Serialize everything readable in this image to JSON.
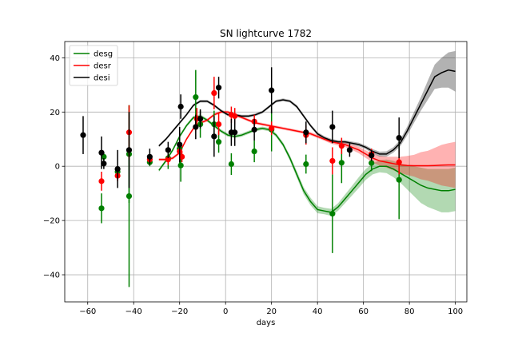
{
  "chart_data": {
    "type": "line",
    "title": "SN lightcurve 1782",
    "xlabel": "days",
    "ylabel": "",
    "xlim": [
      -70,
      105
    ],
    "ylim": [
      -50,
      46
    ],
    "xticks": [
      -60,
      -40,
      -20,
      0,
      20,
      40,
      60,
      80,
      100
    ],
    "yticks": [
      -40,
      -20,
      0,
      20,
      40
    ],
    "grid": true,
    "legend_position": "top-left",
    "series": [
      {
        "name": "desg",
        "color": "#008000",
        "fit_x": [
          -29,
          -26,
          -23,
          -20,
          -17,
          -14,
          -11,
          -8,
          -5,
          -2,
          1,
          4,
          7,
          10,
          13,
          16,
          19,
          22,
          25,
          28,
          31,
          34,
          37,
          40,
          43,
          46,
          49,
          52,
          55,
          58,
          61,
          64,
          67,
          70,
          73,
          76,
          79,
          82,
          85,
          88,
          91,
          94,
          97,
          100
        ],
        "fit_y": [
          -1.5,
          2,
          6,
          11,
          15,
          18,
          18.5,
          17,
          15,
          13,
          11.5,
          11,
          11.5,
          12.5,
          13.5,
          14,
          13.5,
          11.5,
          8,
          3,
          -3,
          -9,
          -13,
          -16,
          -16.5,
          -17,
          -15,
          -12,
          -9,
          -6,
          -3,
          -1,
          0,
          0,
          -1,
          -2.5,
          -4,
          -5.5,
          -7,
          -8,
          -8.5,
          -9,
          -9,
          -8.5
        ],
        "band_half_width": [
          0.6,
          0.6,
          0.6,
          0.6,
          0.6,
          0.6,
          0.6,
          0.6,
          0.6,
          0.6,
          0.6,
          0.6,
          0.6,
          0.6,
          0.6,
          0.6,
          0.6,
          0.7,
          0.8,
          1.0,
          1.2,
          1.3,
          1.4,
          1.3,
          1.2,
          1.3,
          1.4,
          1.6,
          1.8,
          2.0,
          2.0,
          2.0,
          2.2,
          2.5,
          3.0,
          3.5,
          4.5,
          5.5,
          6.5,
          7.0,
          7.5,
          8.0,
          8.0,
          8.0
        ],
        "points": [
          {
            "x": -54,
            "y": -15.5,
            "err": 5.5
          },
          {
            "x": -53,
            "y": 3.5,
            "err": 1.5
          },
          {
            "x": -47,
            "y": -2,
            "err": 1.5
          },
          {
            "x": -42,
            "y": 4.5,
            "err": 18
          },
          {
            "x": -42,
            "y": -11,
            "err": 33.5
          },
          {
            "x": -33,
            "y": 1.5,
            "err": 1.5
          },
          {
            "x": -25,
            "y": 3,
            "err": 4
          },
          {
            "x": -20,
            "y": 6.5,
            "err": 6.5
          },
          {
            "x": -19.5,
            "y": 0.3,
            "err": 6
          },
          {
            "x": -13,
            "y": 25.5,
            "err": 10
          },
          {
            "x": -11,
            "y": 15.5,
            "err": 5
          },
          {
            "x": -5,
            "y": 15.5,
            "err": 5
          },
          {
            "x": -3,
            "y": 9,
            "err": 4
          },
          {
            "x": 2.5,
            "y": 0.8,
            "err": 4
          },
          {
            "x": 12.5,
            "y": 5.5,
            "err": 4
          },
          {
            "x": 20,
            "y": 13.5,
            "err": 8
          },
          {
            "x": 35,
            "y": 0.8,
            "err": 3.5
          },
          {
            "x": 46.5,
            "y": -17.5,
            "err": 14.5
          },
          {
            "x": 50.5,
            "y": 1.3,
            "err": 7.5
          },
          {
            "x": 63.5,
            "y": 1.2,
            "err": 3
          },
          {
            "x": 75.5,
            "y": -5,
            "err": 14.5
          }
        ]
      },
      {
        "name": "desr",
        "color": "#ff0000",
        "fit_x": [
          -29,
          -26,
          -23,
          -20,
          -17,
          -14,
          -11,
          -8,
          -5,
          -2,
          1,
          4,
          7,
          10,
          13,
          16,
          19,
          22,
          25,
          28,
          31,
          34,
          37,
          40,
          43,
          46,
          49,
          52,
          55,
          58,
          61,
          64,
          67,
          70,
          73,
          76,
          79,
          82,
          85,
          88,
          91,
          94,
          97,
          100
        ],
        "fit_y": [
          2.5,
          2.5,
          3,
          5,
          10,
          14,
          16,
          17,
          19,
          20,
          20,
          19,
          18,
          17,
          16,
          15.5,
          15,
          14.5,
          14,
          13.5,
          13,
          12.5,
          12,
          11,
          10,
          9,
          8.5,
          8,
          7,
          6,
          4.5,
          3,
          2,
          1.5,
          1,
          0.5,
          0.3,
          0.2,
          0.2,
          0.2,
          0.3,
          0.4,
          0.5,
          0.5
        ],
        "band_half_width": [
          0.5,
          0.5,
          0.5,
          0.5,
          0.5,
          0.5,
          0.5,
          0.5,
          0.5,
          0.5,
          0.5,
          0.5,
          0.5,
          0.5,
          0.5,
          0.5,
          0.5,
          0.5,
          0.5,
          0.5,
          0.5,
          0.5,
          0.6,
          0.6,
          0.6,
          0.7,
          0.8,
          0.9,
          1.0,
          1.2,
          1.4,
          1.6,
          1.8,
          2.0,
          2.5,
          3.0,
          3.5,
          4.0,
          5.0,
          5.5,
          6.5,
          7.5,
          8.0,
          8.5
        ],
        "points": [
          {
            "x": -54,
            "y": -5.5,
            "err": 3.5
          },
          {
            "x": -47,
            "y": -3.5,
            "err": 2
          },
          {
            "x": -42,
            "y": 12.5,
            "err": 10
          },
          {
            "x": -33,
            "y": 2.5,
            "err": 1.5
          },
          {
            "x": -25,
            "y": 2.5,
            "err": 2
          },
          {
            "x": -20,
            "y": 5.5,
            "err": 3
          },
          {
            "x": -19,
            "y": 3.5,
            "err": 2
          },
          {
            "x": -12.5,
            "y": 17.5,
            "err": 4
          },
          {
            "x": -5,
            "y": 27,
            "err": 6
          },
          {
            "x": -3,
            "y": 15.5,
            "err": 4
          },
          {
            "x": 2.5,
            "y": 19,
            "err": 3
          },
          {
            "x": 4,
            "y": 18.5,
            "err": 3
          },
          {
            "x": 12.5,
            "y": 16.5,
            "err": 2.5
          },
          {
            "x": 20,
            "y": 14,
            "err": 2.5
          },
          {
            "x": 35,
            "y": 11.5,
            "err": 3.5
          },
          {
            "x": 46.5,
            "y": 2,
            "err": 5
          },
          {
            "x": 50.5,
            "y": 7.5,
            "err": 3
          },
          {
            "x": 63.5,
            "y": 4.5,
            "err": 2
          },
          {
            "x": 75.5,
            "y": 1.5,
            "err": 4.5
          }
        ]
      },
      {
        "name": "desi",
        "color": "#000000",
        "fit_x": [
          -29,
          -26,
          -23,
          -20,
          -17,
          -14,
          -11,
          -8,
          -5,
          -2,
          1,
          4,
          7,
          10,
          13,
          16,
          19,
          22,
          25,
          28,
          31,
          34,
          37,
          40,
          43,
          46,
          49,
          52,
          55,
          58,
          61,
          64,
          67,
          70,
          73,
          76,
          79,
          82,
          85,
          88,
          91,
          94,
          97,
          100
        ],
        "fit_y": [
          7.5,
          10,
          13,
          16,
          19,
          22.5,
          24,
          24,
          22.5,
          20.5,
          19,
          19,
          18.5,
          18.5,
          19,
          20,
          22,
          24,
          24.5,
          24,
          22,
          18.5,
          15,
          12,
          10.5,
          9.5,
          9,
          9,
          8.5,
          8,
          7,
          5.5,
          4.5,
          4.5,
          6,
          8.5,
          13,
          18,
          23,
          28,
          33,
          34.5,
          35.5,
          35
        ],
        "band_half_width": [
          0.5,
          0.5,
          0.5,
          0.5,
          0.5,
          0.5,
          0.5,
          0.5,
          0.5,
          0.5,
          0.5,
          0.5,
          0.5,
          0.5,
          0.5,
          0.5,
          0.5,
          0.5,
          0.5,
          0.5,
          0.6,
          0.6,
          0.6,
          0.6,
          0.6,
          0.6,
          0.6,
          0.6,
          0.6,
          0.7,
          0.7,
          0.8,
          0.9,
          1.0,
          1.0,
          1.2,
          1.6,
          2.0,
          2.5,
          3.5,
          4.5,
          5.5,
          6.5,
          7.5
        ],
        "points": [
          {
            "x": -62,
            "y": 11.5,
            "err": 7
          },
          {
            "x": -54,
            "y": 5,
            "err": 6
          },
          {
            "x": -53,
            "y": 1,
            "err": 2
          },
          {
            "x": -47,
            "y": -1,
            "err": 7
          },
          {
            "x": -42,
            "y": 6,
            "err": 14
          },
          {
            "x": -33,
            "y": 3.5,
            "err": 3
          },
          {
            "x": -25,
            "y": 6,
            "err": 3
          },
          {
            "x": -20,
            "y": 8,
            "err": 6.5
          },
          {
            "x": -19.5,
            "y": 22,
            "err": 4.5
          },
          {
            "x": -13,
            "y": 14.5,
            "err": 4.5
          },
          {
            "x": -11,
            "y": 17.5,
            "err": 3.5
          },
          {
            "x": -5,
            "y": 11,
            "err": 7.5
          },
          {
            "x": -3,
            "y": 29,
            "err": 4
          },
          {
            "x": 2.5,
            "y": 12.5,
            "err": 5
          },
          {
            "x": 4,
            "y": 12.5,
            "err": 5
          },
          {
            "x": 12.5,
            "y": 13.5,
            "err": 4
          },
          {
            "x": 20,
            "y": 28,
            "err": 8.5
          },
          {
            "x": 35,
            "y": 12.5,
            "err": 4
          },
          {
            "x": 46.5,
            "y": 14.5,
            "err": 6
          },
          {
            "x": 54,
            "y": 6,
            "err": 2.5
          },
          {
            "x": 63.5,
            "y": 4,
            "err": 2
          },
          {
            "x": 75.5,
            "y": 10.5,
            "err": 7.5
          }
        ]
      }
    ]
  }
}
